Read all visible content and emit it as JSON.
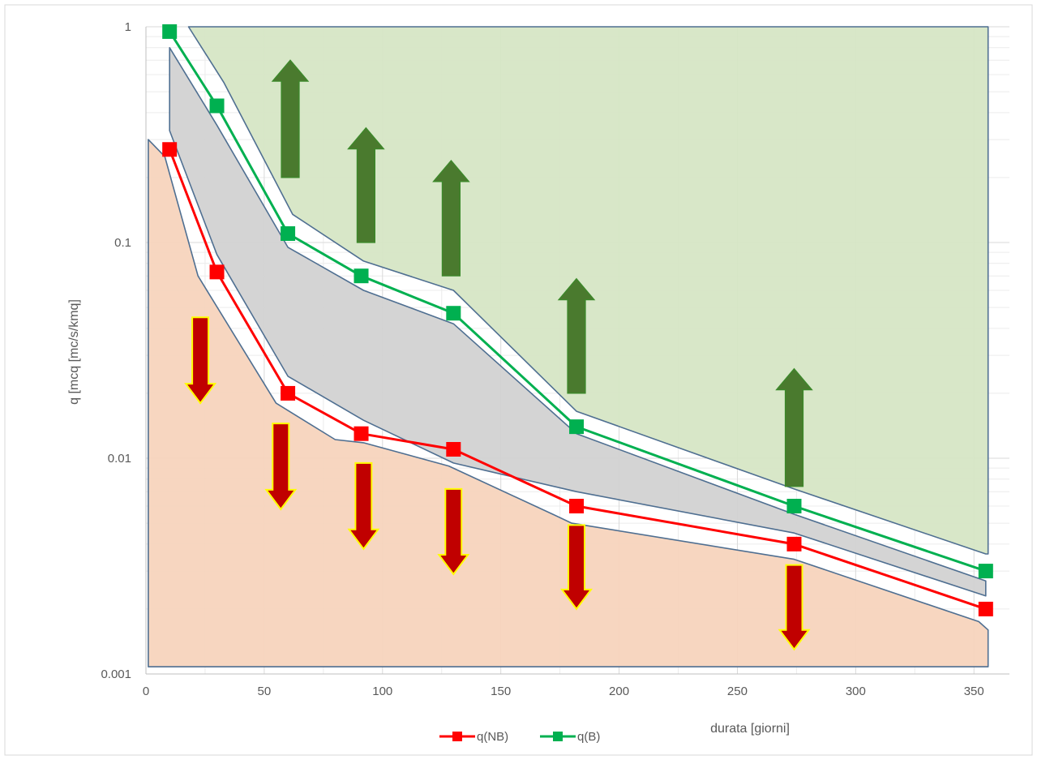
{
  "chart_data": {
    "type": "line",
    "title": "",
    "xlabel": "durata [giorni]",
    "ylabel": "q [mcq [mc/s/kmq]",
    "xlim": [
      0,
      365
    ],
    "ylim": [
      0.001,
      1
    ],
    "yscale": "log",
    "grid": true,
    "legend_position": "bottom",
    "x_ticks": [
      0,
      50,
      100,
      150,
      200,
      250,
      300,
      350
    ],
    "y_ticks": [
      {
        "value": 0.001,
        "label": "0.001"
      },
      {
        "value": 0.01,
        "label": "0.01"
      },
      {
        "value": 0.1,
        "label": "0.1"
      },
      {
        "value": 1,
        "label": "1"
      }
    ],
    "series": [
      {
        "name": "q(NB)",
        "color": "#ff0000",
        "x": [
          10,
          30,
          60,
          91,
          130,
          182,
          274,
          355
        ],
        "y": [
          0.27,
          0.073,
          0.02,
          0.013,
          0.011,
          0.006,
          0.004,
          0.002
        ]
      },
      {
        "name": "q(B)",
        "color": "#00b050",
        "x": [
          10,
          30,
          60,
          91,
          130,
          182,
          274,
          355
        ],
        "y": [
          0.95,
          0.43,
          0.11,
          0.07,
          0.047,
          0.014,
          0.006,
          0.003
        ]
      }
    ],
    "regions": [
      {
        "fill": "#d6e6c5",
        "x": [
          18,
          33,
          62,
          92,
          130,
          182,
          274,
          355,
          356,
          356
        ],
        "y": [
          1.0,
          0.55,
          0.135,
          0.082,
          0.06,
          0.0165,
          0.0072,
          0.0036,
          0.0036,
          1.0
        ]
      },
      {
        "fill": "#d2d2d2",
        "x": [
          10,
          30,
          60,
          92,
          130,
          182,
          274,
          355,
          355,
          274,
          182,
          130,
          92,
          60,
          30,
          10
        ],
        "y": [
          0.8,
          0.35,
          0.095,
          0.06,
          0.042,
          0.013,
          0.0055,
          0.0027,
          0.0023,
          0.0045,
          0.007,
          0.0095,
          0.015,
          0.024,
          0.088,
          0.33
        ]
      },
      {
        "fill": "#f7d4bd",
        "x": [
          1,
          8,
          22,
          55,
          80,
          92,
          128,
          172,
          180,
          274,
          352,
          356,
          356,
          1
        ],
        "y": [
          0.3,
          0.25,
          0.07,
          0.018,
          0.0122,
          0.0118,
          0.0092,
          0.0055,
          0.005,
          0.0034,
          0.00175,
          0.0016,
          0.00108,
          0.00108
        ]
      }
    ],
    "up_arrows": [
      {
        "x": 61,
        "y_low": 0.2,
        "y_high": 0.7
      },
      {
        "x": 93,
        "y_low": 0.1,
        "y_high": 0.34
      },
      {
        "x": 129,
        "y_low": 0.07,
        "y_high": 0.24
      },
      {
        "x": 182,
        "y_low": 0.02,
        "y_high": 0.068
      },
      {
        "x": 274,
        "y_low": 0.0074,
        "y_high": 0.026
      }
    ],
    "down_arrows": [
      {
        "x": 23,
        "y_high": 0.045,
        "y_low": 0.018
      },
      {
        "x": 57,
        "y_high": 0.0145,
        "y_low": 0.0058
      },
      {
        "x": 92,
        "y_high": 0.0095,
        "y_low": 0.0038
      },
      {
        "x": 130,
        "y_high": 0.0072,
        "y_low": 0.0029
      },
      {
        "x": 182,
        "y_high": 0.0049,
        "y_low": 0.002
      },
      {
        "x": 274,
        "y_high": 0.0032,
        "y_low": 0.0013
      }
    ],
    "colors": {
      "plot_background": "#ffffff",
      "grid": "#d9d9d9",
      "region_outline": "#4f6f91",
      "up_arrow_fill": "#4a7a2e",
      "up_arrow_stroke": "#3b8a2a",
      "down_arrow_fill": "#c00000",
      "down_arrow_stroke": "#ffff00"
    }
  }
}
